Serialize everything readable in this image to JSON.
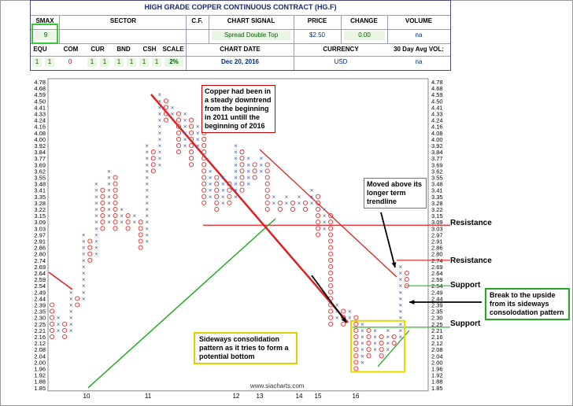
{
  "header": {
    "title": "HIGH GRADE COPPER CONTINUOUS CONTRACT (HG.F)",
    "labels": {
      "smax": "SMAX",
      "sector": "SECTOR",
      "cf": "C.F.",
      "chart_signal": "CHART SIGNAL",
      "price": "PRICE",
      "change": "CHANGE",
      "volume": "VOLUME",
      "equ": "EQU",
      "com": "COM",
      "cur": "CUR",
      "bnd": "BND",
      "csh": "CSH",
      "scale": "SCALE",
      "chart_date": "CHART DATE",
      "currency": "CURRENCY",
      "avg_vol": "30 Day Avg VOL:"
    },
    "values": {
      "smax": "9",
      "chart_signal": "Spread Double Top",
      "price": "$2.50",
      "change": "0.00",
      "volume": "na",
      "equ": "1",
      "equ2": "1",
      "com": "0",
      "cur": "1",
      "cur2": "1",
      "bnd": "1",
      "bnd2": "1",
      "csh": "1",
      "csh2": "1",
      "scale": "2%",
      "chart_date": "Dec 20, 2016",
      "currency": "USD",
      "avg_vol": "na"
    }
  },
  "annotations": {
    "downtrend": "Copper had been in a steady downtrend from the beginning in 2011 untill the beginning of 2016",
    "moved_above": "Moved above its longer term trendline",
    "sideways": "Sideways consolidation pattern as it tries to form a potential bottom",
    "breakout": "Break to the upside from its sideways consolodation pattern",
    "resistance_1": "Resistance",
    "resistance_2": "Resistance",
    "support_1": "Support",
    "support_2": "Support",
    "watermark": "www.siacharts.com"
  },
  "colors": {
    "x_mark": "#3a5ab8",
    "o_mark": "#e03030",
    "trend_red": "#e02020",
    "trend_green": "#22aa22",
    "level_red": "#e02020",
    "level_green": "#22bb22"
  },
  "chart_data": {
    "type": "point-and-figure",
    "y_ticks": [
      "4.78",
      "4.68",
      "4.59",
      "4.50",
      "4.41",
      "4.33",
      "4.24",
      "4.16",
      "4.08",
      "4.00",
      "3.92",
      "3.84",
      "3.77",
      "3.69",
      "3.62",
      "3.55",
      "3.48",
      "3.41",
      "3.35",
      "3.28",
      "3.22",
      "3.15",
      "3.09",
      "3.03",
      "2.97",
      "2.91",
      "2.86",
      "2.80",
      "2.74",
      "2.69",
      "2.64",
      "2.59",
      "2.54",
      "2.49",
      "2.44",
      "2.39",
      "2.35",
      "2.30",
      "2.25",
      "2.21",
      "2.16",
      "2.12",
      "2.08",
      "2.04",
      "2.00",
      "1.96",
      "1.92",
      "1.88",
      "1.85"
    ],
    "x_labels": [
      "10",
      "11",
      "12",
      "13",
      "14",
      "15",
      "16"
    ],
    "ylim": [
      1.85,
      4.78
    ],
    "columns": [
      {
        "type": "O",
        "top": 2.39,
        "bottom": 2.16
      },
      {
        "type": "X",
        "top": 2.3,
        "bottom": 2.21
      },
      {
        "type": "O",
        "top": 2.25,
        "bottom": 2.16
      },
      {
        "type": "X",
        "top": 2.49,
        "bottom": 2.21
      },
      {
        "type": "O",
        "top": 2.44,
        "bottom": 2.39
      },
      {
        "type": "X",
        "top": 2.97,
        "bottom": 2.44
      },
      {
        "type": "O",
        "top": 2.91,
        "bottom": 2.74
      },
      {
        "type": "X",
        "top": 3.48,
        "bottom": 2.8
      },
      {
        "type": "O",
        "top": 3.41,
        "bottom": 3.03
      },
      {
        "type": "X",
        "top": 3.62,
        "bottom": 3.09
      },
      {
        "type": "O",
        "top": 3.55,
        "bottom": 3.03
      },
      {
        "type": "X",
        "top": 3.22,
        "bottom": 3.09
      },
      {
        "type": "O",
        "top": 3.15,
        "bottom": 3.03
      },
      {
        "type": "X",
        "top": 3.15,
        "bottom": 3.09
      },
      {
        "type": "O",
        "top": 3.09,
        "bottom": 2.86
      },
      {
        "type": "X",
        "top": 3.92,
        "bottom": 2.91
      },
      {
        "type": "O",
        "top": 3.84,
        "bottom": 3.62
      },
      {
        "type": "X",
        "top": 4.59,
        "bottom": 3.69
      },
      {
        "type": "O",
        "top": 4.5,
        "bottom": 4.24
      },
      {
        "type": "X",
        "top": 4.41,
        "bottom": 4.33
      },
      {
        "type": "O",
        "top": 4.33,
        "bottom": 3.84
      },
      {
        "type": "X",
        "top": 4.33,
        "bottom": 3.92
      },
      {
        "type": "O",
        "top": 4.24,
        "bottom": 3.69
      },
      {
        "type": "X",
        "top": 4.16,
        "bottom": 3.92
      },
      {
        "type": "O",
        "top": 4.08,
        "bottom": 3.28
      },
      {
        "type": "X",
        "top": 3.62,
        "bottom": 3.35
      },
      {
        "type": "O",
        "top": 3.55,
        "bottom": 3.22
      },
      {
        "type": "X",
        "top": 3.55,
        "bottom": 3.28
      },
      {
        "type": "O",
        "top": 3.48,
        "bottom": 3.28
      },
      {
        "type": "X",
        "top": 3.92,
        "bottom": 3.35
      },
      {
        "type": "O",
        "top": 3.84,
        "bottom": 3.41
      },
      {
        "type": "X",
        "top": 3.77,
        "bottom": 3.48
      },
      {
        "type": "O",
        "top": 3.69,
        "bottom": 3.55
      },
      {
        "type": "X",
        "top": 3.77,
        "bottom": 3.62
      },
      {
        "type": "O",
        "top": 3.69,
        "bottom": 3.22
      },
      {
        "type": "X",
        "top": 3.35,
        "bottom": 3.28
      },
      {
        "type": "O",
        "top": 3.28,
        "bottom": 3.22
      },
      {
        "type": "X",
        "top": 3.35,
        "bottom": 3.28
      },
      {
        "type": "O",
        "top": 3.28,
        "bottom": 3.22
      },
      {
        "type": "X",
        "top": 3.35,
        "bottom": 3.28
      },
      {
        "type": "O",
        "top": 3.28,
        "bottom": 3.22
      },
      {
        "type": "X",
        "top": 3.41,
        "bottom": 3.28
      },
      {
        "type": "O",
        "top": 3.35,
        "bottom": 2.97
      },
      {
        "type": "X",
        "top": 3.22,
        "bottom": 3.03
      },
      {
        "type": "O",
        "top": 3.15,
        "bottom": 2.25
      },
      {
        "type": "X",
        "top": 2.39,
        "bottom": 2.3
      },
      {
        "type": "O",
        "top": 2.35,
        "bottom": 2.25
      },
      {
        "type": "X",
        "top": 2.35,
        "bottom": 2.3
      },
      {
        "type": "O",
        "top": 2.3,
        "bottom": 1.96
      },
      {
        "type": "X",
        "top": 2.25,
        "bottom": 2.0
      },
      {
        "type": "O",
        "top": 2.21,
        "bottom": 2.04
      },
      {
        "type": "X",
        "top": 2.21,
        "bottom": 2.08
      },
      {
        "type": "O",
        "top": 2.16,
        "bottom": 2.04
      },
      {
        "type": "X",
        "top": 2.21,
        "bottom": 2.08
      },
      {
        "type": "O",
        "top": 2.16,
        "bottom": 2.12
      },
      {
        "type": "X",
        "top": 2.69,
        "bottom": 2.16
      },
      {
        "type": "O",
        "top": 2.64,
        "bottom": 2.54
      }
    ],
    "levels": [
      {
        "label": "Resistance",
        "value": 3.06,
        "color": "red"
      },
      {
        "label": "Resistance",
        "value": 2.74,
        "color": "red"
      },
      {
        "label": "Support",
        "value": 2.54,
        "color": "green"
      },
      {
        "label": "Support",
        "value": 2.23,
        "color": "green"
      }
    ]
  }
}
